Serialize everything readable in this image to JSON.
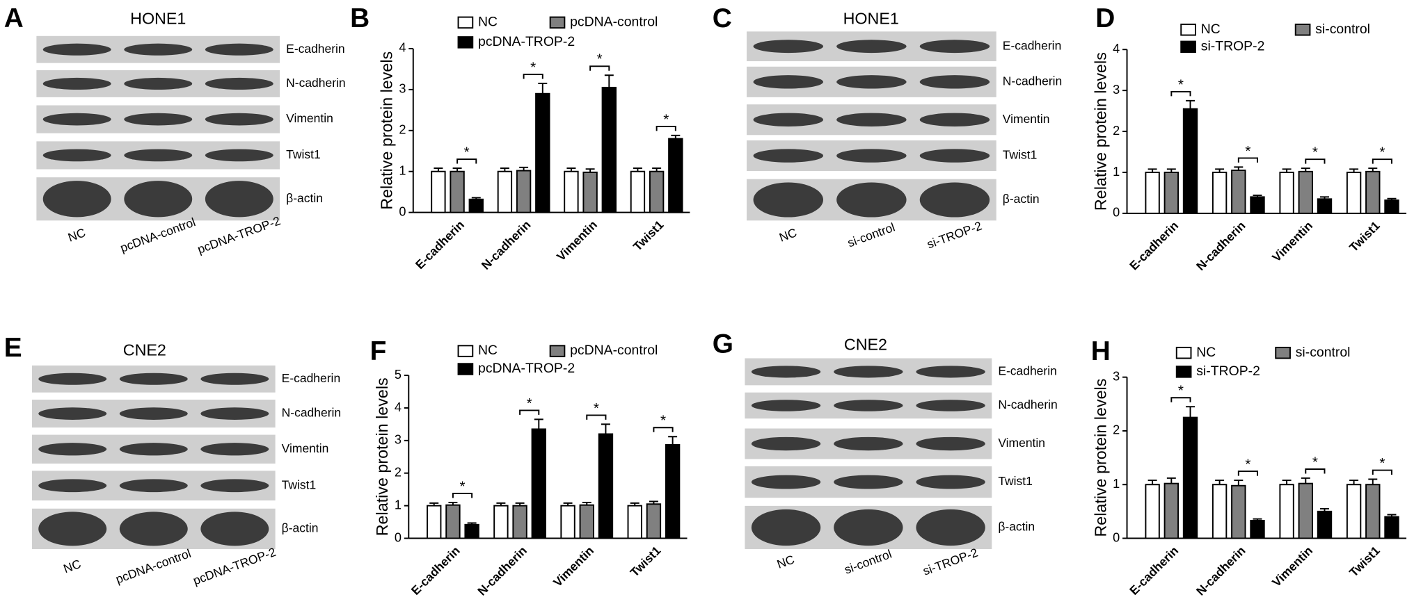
{
  "blots": [
    {
      "panel": "A",
      "title": "HONE1",
      "bands": [
        "E-cadherin",
        "N-cadherin",
        "Vimentin",
        "Twist1",
        "β-actin"
      ],
      "lanes": [
        "NC",
        "pcDNA-control",
        "pcDNA-TROP-2"
      ]
    },
    {
      "panel": "C",
      "title": "HONE1",
      "bands": [
        "E-cadherin",
        "N-cadherin",
        "Vimentin",
        "Twist1",
        "β-actin"
      ],
      "lanes": [
        "NC",
        "si-control",
        "si-TROP-2"
      ]
    },
    {
      "panel": "E",
      "title": "CNE2",
      "bands": [
        "E-cadherin",
        "N-cadherin",
        "Vimentin",
        "Twist1",
        "β-actin"
      ],
      "lanes": [
        "NC",
        "pcDNA-control",
        "pcDNA-TROP-2"
      ]
    },
    {
      "panel": "G",
      "title": "CNE2",
      "bands": [
        "E-cadherin",
        "N-cadherin",
        "Vimentin",
        "Twist1",
        "β-actin"
      ],
      "lanes": [
        "NC",
        "si-control",
        "si-TROP-2"
      ]
    }
  ],
  "chart_data": [
    {
      "type": "bar",
      "panel": "B",
      "ylabel": "Relative protein levels",
      "categories": [
        "E-cadherin",
        "N-cadherin",
        "Vimentin",
        "Twist1"
      ],
      "series": [
        {
          "name": "NC",
          "color": "#ffffff",
          "values": [
            1,
            1,
            1,
            1
          ],
          "errors": [
            0.08,
            0.08,
            0.08,
            0.08
          ]
        },
        {
          "name": "pcDNA-control",
          "color": "#808080",
          "values": [
            1,
            1.02,
            0.98,
            1
          ],
          "errors": [
            0.08,
            0.08,
            0.08,
            0.08
          ]
        },
        {
          "name": "pcDNA-TROP-2",
          "color": "#000000",
          "values": [
            0.32,
            2.9,
            3.05,
            1.8
          ],
          "errors": [
            0.04,
            0.25,
            0.3,
            0.08
          ]
        }
      ],
      "significance": [
        "*",
        "*",
        "*",
        "*"
      ],
      "ylim": [
        0,
        4
      ],
      "yticks": [
        0,
        1,
        2,
        3,
        4
      ]
    },
    {
      "type": "bar",
      "panel": "D",
      "ylabel": "Relative protein levels",
      "categories": [
        "E-cadherin",
        "N-cadherin",
        "Vimentin",
        "Twist1"
      ],
      "series": [
        {
          "name": "NC",
          "color": "#ffffff",
          "values": [
            1,
            1,
            1,
            1
          ],
          "errors": [
            0.08,
            0.08,
            0.08,
            0.08
          ]
        },
        {
          "name": "si-control",
          "color": "#808080",
          "values": [
            1,
            1.05,
            1.02,
            1.02
          ],
          "errors": [
            0.08,
            0.08,
            0.08,
            0.08
          ]
        },
        {
          "name": "si-TROP-2",
          "color": "#000000",
          "values": [
            2.55,
            0.4,
            0.35,
            0.32
          ],
          "errors": [
            0.2,
            0.04,
            0.05,
            0.04
          ]
        }
      ],
      "significance": [
        "*",
        "*",
        "*",
        "*"
      ],
      "ylim": [
        0,
        4
      ],
      "yticks": [
        0,
        1,
        2,
        3,
        4
      ]
    },
    {
      "type": "bar",
      "panel": "F",
      "ylabel": "Relative protein levels",
      "categories": [
        "E-cadherin",
        "N-cadherin",
        "Vimentin",
        "Twist1"
      ],
      "series": [
        {
          "name": "NC",
          "color": "#ffffff",
          "values": [
            1,
            1,
            1,
            1
          ],
          "errors": [
            0.08,
            0.08,
            0.08,
            0.08
          ]
        },
        {
          "name": "pcDNA-control",
          "color": "#808080",
          "values": [
            1.02,
            1,
            1.02,
            1.05
          ],
          "errors": [
            0.08,
            0.08,
            0.08,
            0.08
          ]
        },
        {
          "name": "pcDNA-TROP-2",
          "color": "#000000",
          "values": [
            0.42,
            3.35,
            3.2,
            2.87
          ],
          "errors": [
            0.05,
            0.3,
            0.3,
            0.25
          ]
        }
      ],
      "significance": [
        "*",
        "*",
        "*",
        "*"
      ],
      "ylim": [
        0,
        5
      ],
      "yticks": [
        0,
        1,
        2,
        3,
        4,
        5
      ]
    },
    {
      "type": "bar",
      "panel": "H",
      "ylabel": "Relative protein levels",
      "categories": [
        "E-cadherin",
        "N-cadherin",
        "Vimentin",
        "Twist1"
      ],
      "series": [
        {
          "name": "NC",
          "color": "#ffffff",
          "values": [
            1,
            1,
            1,
            1
          ],
          "errors": [
            0.08,
            0.08,
            0.08,
            0.08
          ]
        },
        {
          "name": "si-control",
          "color": "#808080",
          "values": [
            1.02,
            0.98,
            1.02,
            1
          ],
          "errors": [
            0.1,
            0.1,
            0.1,
            0.1
          ]
        },
        {
          "name": "si-TROP-2",
          "color": "#000000",
          "values": [
            2.25,
            0.33,
            0.5,
            0.4
          ],
          "errors": [
            0.2,
            0.03,
            0.05,
            0.04
          ]
        }
      ],
      "significance": [
        "*",
        "*",
        "*",
        "*"
      ],
      "ylim": [
        0,
        3
      ],
      "yticks": [
        0,
        1,
        2,
        3
      ]
    }
  ]
}
